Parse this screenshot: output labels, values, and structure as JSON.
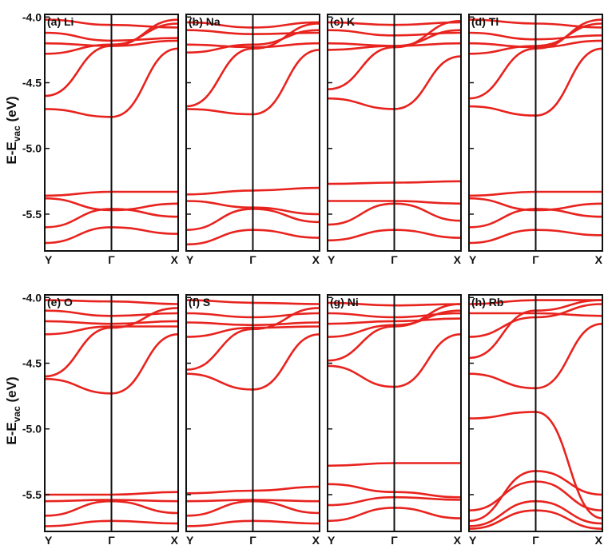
{
  "ylabel": {
    "prefix": "E-E",
    "subscript": "vac",
    "suffix": " (eV)"
  },
  "chart_data": [
    {
      "type": "line",
      "title": "(a) Li",
      "ylim": [
        -5.78,
        -3.98
      ],
      "yticks": [
        -4.0,
        -4.5,
        -5.0,
        -5.5
      ],
      "ytick_labels": [
        "-4.0",
        "-4.5",
        "-5.0",
        "-5.5"
      ],
      "xticks": [
        "Y",
        "Γ",
        "X"
      ],
      "line_color": "#e8231e",
      "bands": [
        [
          [
            0,
            -4.02
          ],
          [
            0.5,
            -4.06
          ],
          [
            1,
            -4.08
          ]
        ],
        [
          [
            0,
            -4.12
          ],
          [
            0.5,
            -4.18
          ],
          [
            1,
            -4.16
          ]
        ],
        [
          [
            0,
            -4.2
          ],
          [
            0.5,
            -4.22
          ],
          [
            1,
            -4.18
          ]
        ],
        [
          [
            0,
            -4.28
          ],
          [
            0.5,
            -4.21
          ],
          [
            1,
            -4.05
          ]
        ],
        [
          [
            0,
            -4.6
          ],
          [
            0.5,
            -4.22
          ],
          [
            1,
            -4.02
          ]
        ],
        [
          [
            0,
            -4.7
          ],
          [
            0.5,
            -4.76
          ],
          [
            1,
            -4.24
          ]
        ],
        [
          [
            0,
            -5.36
          ],
          [
            0.5,
            -5.33
          ],
          [
            1,
            -5.33
          ]
        ],
        [
          [
            0,
            -5.38
          ],
          [
            0.5,
            -5.47
          ],
          [
            1,
            -5.42
          ]
        ],
        [
          [
            0,
            -5.6
          ],
          [
            0.5,
            -5.46
          ],
          [
            1,
            -5.52
          ]
        ],
        [
          [
            0,
            -5.72
          ],
          [
            0.5,
            -5.6
          ],
          [
            1,
            -5.65
          ]
        ]
      ]
    },
    {
      "type": "line",
      "title": "(b) Na",
      "ylim": [
        -5.78,
        -3.98
      ],
      "xticks": [
        "Y",
        "Γ",
        "X"
      ],
      "line_color": "#e8231e",
      "bands": [
        [
          [
            0,
            -4.04
          ],
          [
            0.5,
            -4.08
          ],
          [
            1,
            -4.04
          ]
        ],
        [
          [
            0,
            -4.1
          ],
          [
            0.5,
            -4.13
          ],
          [
            1,
            -4.12
          ]
        ],
        [
          [
            0,
            -4.21
          ],
          [
            0.5,
            -4.23
          ],
          [
            1,
            -4.2
          ]
        ],
        [
          [
            0,
            -4.27
          ],
          [
            0.5,
            -4.21
          ],
          [
            1,
            -4.1
          ]
        ],
        [
          [
            0,
            -4.68
          ],
          [
            0.5,
            -4.24
          ],
          [
            1,
            -4.05
          ]
        ],
        [
          [
            0,
            -4.7
          ],
          [
            0.5,
            -4.74
          ],
          [
            1,
            -4.25
          ]
        ],
        [
          [
            0,
            -5.35
          ],
          [
            0.5,
            -5.32
          ],
          [
            1,
            -5.3
          ]
        ],
        [
          [
            0,
            -5.4
          ],
          [
            0.5,
            -5.45
          ],
          [
            1,
            -5.5
          ]
        ],
        [
          [
            0,
            -5.62
          ],
          [
            0.5,
            -5.46
          ],
          [
            1,
            -5.56
          ]
        ],
        [
          [
            0,
            -5.73
          ],
          [
            0.5,
            -5.62
          ],
          [
            1,
            -5.68
          ]
        ]
      ]
    },
    {
      "type": "line",
      "title": "(c) K",
      "ylim": [
        -5.78,
        -3.98
      ],
      "xticks": [
        "Y",
        "Γ",
        "X"
      ],
      "line_color": "#e8231e",
      "bands": [
        [
          [
            0,
            -4.04
          ],
          [
            0.5,
            -4.06
          ],
          [
            1,
            -4.04
          ]
        ],
        [
          [
            0,
            -4.1
          ],
          [
            0.5,
            -4.14
          ],
          [
            1,
            -4.12
          ]
        ],
        [
          [
            0,
            -4.2
          ],
          [
            0.5,
            -4.22
          ],
          [
            1,
            -4.2
          ]
        ],
        [
          [
            0,
            -4.25
          ],
          [
            0.5,
            -4.22
          ],
          [
            1,
            -4.1
          ]
        ],
        [
          [
            0,
            -4.55
          ],
          [
            0.5,
            -4.23
          ],
          [
            1,
            -4.03
          ]
        ],
        [
          [
            0,
            -4.62
          ],
          [
            0.5,
            -4.7
          ],
          [
            1,
            -4.3
          ]
        ],
        [
          [
            0,
            -5.27
          ],
          [
            0.5,
            -5.26
          ],
          [
            1,
            -5.25
          ]
        ],
        [
          [
            0,
            -5.4
          ],
          [
            0.5,
            -5.4
          ],
          [
            1,
            -5.42
          ]
        ],
        [
          [
            0,
            -5.58
          ],
          [
            0.5,
            -5.42
          ],
          [
            1,
            -5.55
          ]
        ],
        [
          [
            0,
            -5.7
          ],
          [
            0.5,
            -5.62
          ],
          [
            1,
            -5.68
          ]
        ]
      ]
    },
    {
      "type": "line",
      "title": "(d) Tl",
      "ylim": [
        -5.78,
        -3.98
      ],
      "xticks": [
        "Y",
        "Γ",
        "X"
      ],
      "line_color": "#e8231e",
      "bands": [
        [
          [
            0,
            -4.02
          ],
          [
            0.5,
            -4.05
          ],
          [
            1,
            -4.08
          ]
        ],
        [
          [
            0,
            -4.12
          ],
          [
            0.5,
            -4.17
          ],
          [
            1,
            -4.14
          ]
        ],
        [
          [
            0,
            -4.2
          ],
          [
            0.5,
            -4.23
          ],
          [
            1,
            -4.18
          ]
        ],
        [
          [
            0,
            -4.28
          ],
          [
            0.5,
            -4.22
          ],
          [
            1,
            -4.05
          ]
        ],
        [
          [
            0,
            -4.62
          ],
          [
            0.5,
            -4.24
          ],
          [
            1,
            -4.02
          ]
        ],
        [
          [
            0,
            -4.68
          ],
          [
            0.5,
            -4.75
          ],
          [
            1,
            -4.24
          ]
        ],
        [
          [
            0,
            -5.36
          ],
          [
            0.5,
            -5.33
          ],
          [
            1,
            -5.33
          ]
        ],
        [
          [
            0,
            -5.38
          ],
          [
            0.5,
            -5.47
          ],
          [
            1,
            -5.42
          ]
        ],
        [
          [
            0,
            -5.6
          ],
          [
            0.5,
            -5.46
          ],
          [
            1,
            -5.52
          ]
        ],
        [
          [
            0,
            -5.72
          ],
          [
            0.5,
            -5.62
          ],
          [
            1,
            -5.66
          ]
        ]
      ]
    },
    {
      "type": "line",
      "title": "(e) O",
      "ylim": [
        -5.78,
        -3.98
      ],
      "yticks": [
        -4.0,
        -4.5,
        -5.0,
        -5.5
      ],
      "ytick_labels": [
        "-4.0",
        "-4.5",
        "-5.0",
        "-5.5"
      ],
      "xticks": [
        "Y",
        "Γ",
        "X"
      ],
      "line_color": "#e8231e",
      "bands": [
        [
          [
            0,
            -4.02
          ],
          [
            0.5,
            -4.03
          ],
          [
            1,
            -4.05
          ]
        ],
        [
          [
            0,
            -4.1
          ],
          [
            0.5,
            -4.14
          ],
          [
            1,
            -4.12
          ]
        ],
        [
          [
            0,
            -4.18
          ],
          [
            0.5,
            -4.2
          ],
          [
            1,
            -4.18
          ]
        ],
        [
          [
            0,
            -4.28
          ],
          [
            0.5,
            -4.22
          ],
          [
            1,
            -4.22
          ]
        ],
        [
          [
            0,
            -4.6
          ],
          [
            0.5,
            -4.23
          ],
          [
            1,
            -4.08
          ]
        ],
        [
          [
            0,
            -4.62
          ],
          [
            0.5,
            -4.73
          ],
          [
            1,
            -4.28
          ]
        ],
        [
          [
            0,
            -5.5
          ],
          [
            0.5,
            -5.5
          ],
          [
            1,
            -5.48
          ]
        ],
        [
          [
            0,
            -5.55
          ],
          [
            0.5,
            -5.54
          ],
          [
            1,
            -5.55
          ]
        ],
        [
          [
            0,
            -5.66
          ],
          [
            0.5,
            -5.55
          ],
          [
            1,
            -5.64
          ]
        ],
        [
          [
            0,
            -5.74
          ],
          [
            0.5,
            -5.7
          ],
          [
            1,
            -5.72
          ]
        ]
      ]
    },
    {
      "type": "line",
      "title": "(f) S",
      "ylim": [
        -5.78,
        -3.98
      ],
      "xticks": [
        "Y",
        "Γ",
        "X"
      ],
      "line_color": "#e8231e",
      "bands": [
        [
          [
            0,
            -4.02
          ],
          [
            0.5,
            -4.04
          ],
          [
            1,
            -4.05
          ]
        ],
        [
          [
            0,
            -4.12
          ],
          [
            0.5,
            -4.15
          ],
          [
            1,
            -4.12
          ]
        ],
        [
          [
            0,
            -4.19
          ],
          [
            0.5,
            -4.21
          ],
          [
            1,
            -4.19
          ]
        ],
        [
          [
            0,
            -4.3
          ],
          [
            0.5,
            -4.23
          ],
          [
            1,
            -4.22
          ]
        ],
        [
          [
            0,
            -4.55
          ],
          [
            0.5,
            -4.24
          ],
          [
            1,
            -4.08
          ]
        ],
        [
          [
            0,
            -4.58
          ],
          [
            0.5,
            -4.7
          ],
          [
            1,
            -4.28
          ]
        ],
        [
          [
            0,
            -5.49
          ],
          [
            0.5,
            -5.47
          ],
          [
            1,
            -5.44
          ]
        ],
        [
          [
            0,
            -5.55
          ],
          [
            0.5,
            -5.54
          ],
          [
            1,
            -5.55
          ]
        ],
        [
          [
            0,
            -5.66
          ],
          [
            0.5,
            -5.55
          ],
          [
            1,
            -5.64
          ]
        ],
        [
          [
            0,
            -5.74
          ],
          [
            0.5,
            -5.7
          ],
          [
            1,
            -5.72
          ]
        ]
      ]
    },
    {
      "type": "line",
      "title": "(g) Ni",
      "ylim": [
        -5.78,
        -3.98
      ],
      "xticks": [
        "Y",
        "Γ",
        "X"
      ],
      "line_color": "#e8231e",
      "bands": [
        [
          [
            0,
            -4.04
          ],
          [
            0.5,
            -4.06
          ],
          [
            1,
            -4.05
          ]
        ],
        [
          [
            0,
            -4.12
          ],
          [
            0.5,
            -4.15
          ],
          [
            1,
            -4.12
          ]
        ],
        [
          [
            0,
            -4.2
          ],
          [
            0.5,
            -4.18
          ],
          [
            1,
            -4.16
          ]
        ],
        [
          [
            0,
            -4.3
          ],
          [
            0.5,
            -4.21
          ],
          [
            1,
            -4.1
          ]
        ],
        [
          [
            0,
            -4.48
          ],
          [
            0.5,
            -4.22
          ],
          [
            1,
            -4.05
          ]
        ],
        [
          [
            0,
            -4.52
          ],
          [
            0.5,
            -4.68
          ],
          [
            1,
            -4.28
          ]
        ],
        [
          [
            0,
            -5.28
          ],
          [
            0.5,
            -5.26
          ],
          [
            1,
            -5.26
          ]
        ],
        [
          [
            0,
            -5.42
          ],
          [
            0.5,
            -5.48
          ],
          [
            1,
            -5.52
          ]
        ],
        [
          [
            0,
            -5.58
          ],
          [
            0.5,
            -5.52
          ],
          [
            1,
            -5.54
          ]
        ],
        [
          [
            0,
            -5.7
          ],
          [
            0.5,
            -5.6
          ],
          [
            1,
            -5.68
          ]
        ]
      ]
    },
    {
      "type": "line",
      "title": "(h) Rb",
      "ylim": [
        -5.78,
        -3.98
      ],
      "xticks": [
        "Y",
        "Γ",
        "X"
      ],
      "line_color": "#e8231e",
      "bands": [
        [
          [
            0,
            -4.05
          ],
          [
            0.5,
            -4.02
          ],
          [
            1,
            -4.02
          ]
        ],
        [
          [
            0,
            -4.12
          ],
          [
            0.5,
            -4.12
          ],
          [
            1,
            -4.14
          ]
        ],
        [
          [
            0,
            -4.3
          ],
          [
            0.5,
            -4.15
          ],
          [
            1,
            -4.05
          ]
        ],
        [
          [
            0,
            -4.46
          ],
          [
            0.5,
            -4.1
          ],
          [
            1,
            -4.02
          ]
        ],
        [
          [
            0,
            -4.58
          ],
          [
            0.5,
            -4.69
          ],
          [
            1,
            -4.2
          ]
        ],
        [
          [
            0,
            -4.92
          ],
          [
            0.5,
            -4.87
          ],
          [
            1,
            -5.68
          ]
        ],
        [
          [
            0,
            -5.7
          ],
          [
            0.5,
            -5.32
          ],
          [
            1,
            -5.5
          ]
        ],
        [
          [
            0,
            -5.62
          ],
          [
            0.5,
            -5.4
          ],
          [
            1,
            -5.62
          ]
        ],
        [
          [
            0,
            -5.74
          ],
          [
            0.5,
            -5.55
          ],
          [
            1,
            -5.72
          ]
        ],
        [
          [
            0,
            -5.76
          ],
          [
            0.5,
            -5.62
          ],
          [
            1,
            -5.76
          ]
        ]
      ]
    }
  ]
}
